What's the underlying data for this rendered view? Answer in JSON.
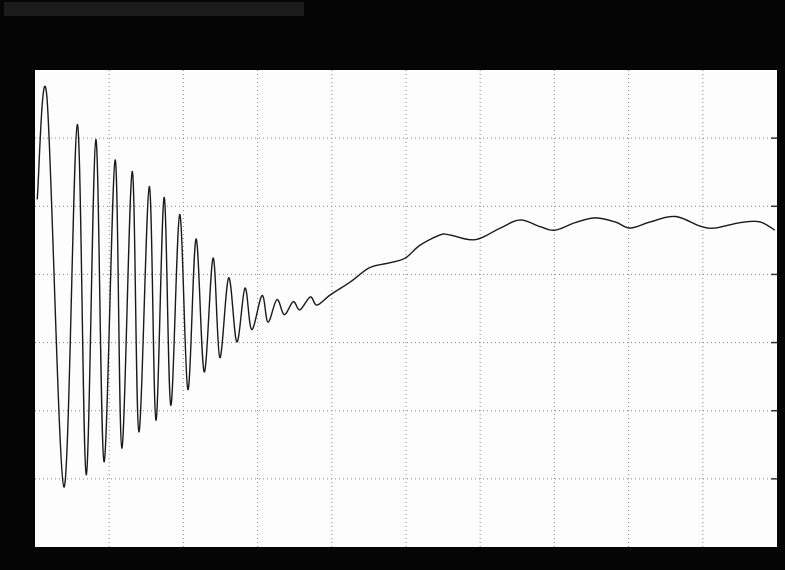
{
  "chart_data": {
    "type": "line",
    "x": [
      0.03,
      0.16,
      0.39,
      0.57,
      0.69,
      0.82,
      0.93,
      1.08,
      1.17,
      1.31,
      1.4,
      1.54,
      1.63,
      1.74,
      1.83,
      1.95,
      2.06,
      2.17,
      2.28,
      2.4,
      2.49,
      2.61,
      2.72,
      2.83,
      2.92,
      3.06,
      3.14,
      3.26,
      3.36,
      3.48,
      3.57,
      3.71,
      3.8,
      3.98,
      4.25,
      4.51,
      4.78,
      4.99,
      5.19,
      5.46,
      5.59,
      5.93,
      6.27,
      6.54,
      6.81,
      7.01,
      7.28,
      7.55,
      7.82,
      8.02,
      8.29,
      8.63,
      8.96,
      9.16,
      9.5,
      9.77,
      9.97
    ],
    "series": [
      {
        "color": "#1a1a1a",
        "values": [
          5.1,
          6.61,
          0.88,
          6.2,
          1.06,
          5.98,
          1.25,
          5.68,
          1.45,
          5.51,
          1.69,
          5.29,
          1.86,
          5.13,
          2.08,
          4.88,
          2.31,
          4.52,
          2.57,
          4.24,
          2.78,
          3.95,
          3.01,
          3.8,
          3.19,
          3.69,
          3.3,
          3.63,
          3.41,
          3.6,
          3.48,
          3.67,
          3.55,
          3.7,
          3.89,
          4.1,
          4.17,
          4.24,
          4.43,
          4.58,
          4.58,
          4.51,
          4.68,
          4.8,
          4.7,
          4.65,
          4.76,
          4.83,
          4.77,
          4.68,
          4.77,
          4.85,
          4.71,
          4.68,
          4.76,
          4.77,
          4.65
        ]
      }
    ],
    "xlim": [
      0,
      10
    ],
    "ylim": [
      0,
      7
    ],
    "grid": true
  }
}
